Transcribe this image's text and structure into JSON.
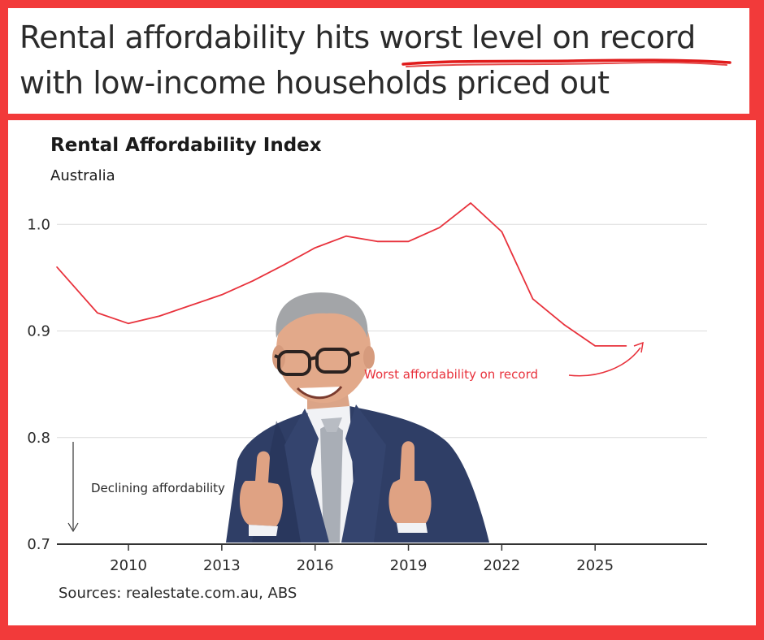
{
  "headline": {
    "line1_prefix": "Rental affordability hits ",
    "line1_highlight": "worst level on record",
    "line2": "with low-income households priced out"
  },
  "chart_data": {
    "type": "line",
    "title": "Rental Affordability Index",
    "subtitle": "Australia",
    "xlabel": "",
    "ylabel": "",
    "xlim": [
      2007.7,
      2028.6
    ],
    "ylim": [
      0.7,
      1.02
    ],
    "grid": true,
    "x_ticks": [
      2010,
      2013,
      2016,
      2019,
      2022,
      2025
    ],
    "y_ticks": [
      0.7,
      0.8,
      0.9,
      1.0
    ],
    "y_tick_labels": [
      "0.7",
      "0.8",
      "0.9",
      "1.0"
    ],
    "series": [
      {
        "color": "#e8323c",
        "x": [
          2007.7,
          2009,
          2010,
          2011,
          2012,
          2013,
          2014,
          2015,
          2016,
          2017,
          2018,
          2019,
          2020,
          2021,
          2022,
          2023,
          2024,
          2025,
          2026
        ],
        "y": [
          0.96,
          0.917,
          0.907,
          0.914,
          0.924,
          0.934,
          0.947,
          0.962,
          0.978,
          0.989,
          0.984,
          0.984,
          0.997,
          1.02,
          0.993,
          0.93,
          0.906,
          0.886,
          0.886
        ]
      }
    ],
    "annotations": [
      {
        "text": "Worst affordability on record",
        "color": "#e8323c"
      },
      {
        "text": "Declining affordability",
        "color": "#2a2a2a"
      }
    ],
    "source": "Sources: realestate.com.au, ABS"
  },
  "photo": {
    "icon": "man-thumbs-up-photo"
  },
  "colors": {
    "frame": "#f23a3a",
    "line": "#e8323c",
    "text": "#1a1a1a"
  }
}
